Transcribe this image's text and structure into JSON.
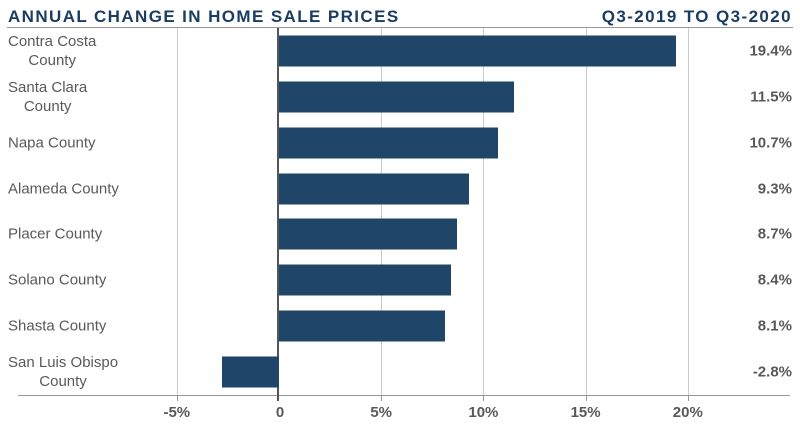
{
  "header": {
    "title": "ANNUAL CHANGE IN HOME SALE PRICES",
    "period": "Q3-2019 TO Q3-2020"
  },
  "colors": {
    "bar": "#1f4568",
    "title": "#1b3c63",
    "text": "#58595b",
    "grid": "#cccccc",
    "zero_line": "#54555a",
    "axis_line": "#98989a"
  },
  "chart_data": {
    "type": "bar",
    "orientation": "horizontal",
    "title": "ANNUAL CHANGE IN HOME SALE PRICES",
    "subtitle": "Q3-2019 TO Q3-2020",
    "categories": [
      [
        "Contra Costa",
        "County"
      ],
      [
        "Santa Clara",
        "County"
      ],
      [
        "Napa County"
      ],
      [
        "Alameda County"
      ],
      [
        "Placer County"
      ],
      [
        "Solano County"
      ],
      [
        "Shasta County"
      ],
      [
        "San Luis Obispo",
        "County"
      ]
    ],
    "values": [
      19.4,
      11.5,
      10.7,
      9.3,
      8.7,
      8.4,
      8.1,
      -2.8
    ],
    "value_labels": [
      "19.4%",
      "11.5%",
      "10.7%",
      "9.3%",
      "8.7%",
      "8.4%",
      "8.1%",
      "-2.8%"
    ],
    "unit": "%",
    "x_ticks": [
      {
        "value": -5,
        "label": "-5%"
      },
      {
        "value": 0,
        "label": "0"
      },
      {
        "value": 5,
        "label": "5%"
      },
      {
        "value": 10,
        "label": "10%"
      },
      {
        "value": 15,
        "label": "15%"
      },
      {
        "value": 20,
        "label": "20%"
      }
    ],
    "xlim": [
      -5,
      20
    ],
    "grid": true,
    "legend": false
  }
}
